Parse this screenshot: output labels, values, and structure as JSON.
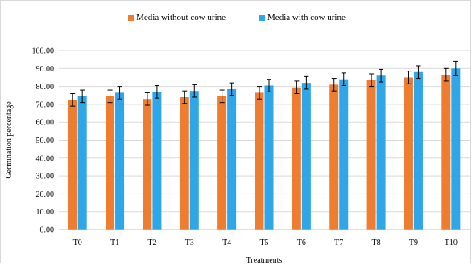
{
  "chart_data": {
    "type": "bar",
    "title": "",
    "xlabel": "Treatments",
    "ylabel": "Germination percentage",
    "categories": [
      "T0",
      "T1",
      "T2",
      "T3",
      "T4",
      "T5",
      "T6",
      "T7",
      "T8",
      "T9",
      "T10"
    ],
    "ylim": [
      0,
      100
    ],
    "yticks": [
      "0.00",
      "10.00",
      "20.00",
      "30.00",
      "40.00",
      "50.00",
      "60.00",
      "70.00",
      "80.00",
      "90.00",
      "100.00"
    ],
    "grid": true,
    "legend_position": "top-center",
    "series": [
      {
        "name": "Media without cow urine",
        "color": "#ed7d31",
        "values": [
          72.5,
          74.5,
          73.0,
          74.0,
          74.5,
          76.5,
          79.5,
          81.0,
          83.5,
          85.0,
          86.5
        ],
        "errors": [
          3.5,
          3.5,
          3.5,
          3.5,
          3.5,
          3.5,
          3.5,
          3.5,
          3.5,
          3.5,
          3.5
        ]
      },
      {
        "name": "Media with cow urine",
        "color": "#2ea6e8",
        "values": [
          74.5,
          76.5,
          77.0,
          77.5,
          78.5,
          80.5,
          82.0,
          84.0,
          86.0,
          88.0,
          90.0
        ],
        "errors": [
          3.5,
          3.5,
          3.5,
          3.5,
          3.5,
          3.5,
          3.5,
          3.5,
          3.5,
          3.5,
          4.0
        ]
      }
    ]
  }
}
